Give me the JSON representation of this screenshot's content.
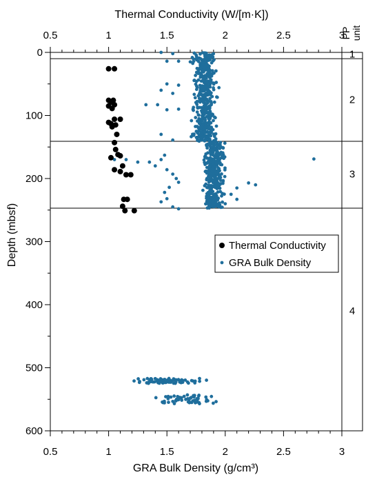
{
  "chart_data": {
    "type": "scatter",
    "title": "",
    "top_axis": {
      "label": "Thermal Conductivity (W/[m·K])",
      "ticks": [
        "0.5",
        "1",
        "1.5",
        "2",
        "2.5",
        "3"
      ],
      "range": [
        0.5,
        3
      ]
    },
    "bottom_axis": {
      "label": "GRA Bulk Density (g/cm³)",
      "ticks": [
        "0.5",
        "1",
        "1.5",
        "2",
        "2.5",
        "3"
      ],
      "range": [
        0.5,
        3
      ]
    },
    "y_axis": {
      "label": "Depth (mbsf)",
      "ticks": [
        "0",
        "100",
        "200",
        "300",
        "400",
        "500",
        "600"
      ],
      "range": [
        0,
        600
      ],
      "inverted": true
    },
    "legend": {
      "placement": "center-right",
      "items": [
        "Thermal Conductivity",
        "GRA Bulk Density"
      ]
    },
    "pp_units": {
      "header_line1": "PP",
      "header_line2": "unit",
      "boundaries_mbsf": [
        10,
        141,
        247
      ],
      "labels": [
        {
          "label": "1",
          "depth": 3
        },
        {
          "label": "2",
          "depth": 75
        },
        {
          "label": "3",
          "depth": 193
        },
        {
          "label": "4",
          "depth": 410
        }
      ]
    },
    "colors": {
      "thermal": "#000000",
      "gra": "#1f6e9c"
    },
    "series": [
      {
        "name": "Thermal Conductivity",
        "axis": "top",
        "points": [
          [
            1.0,
            26
          ],
          [
            1.05,
            26
          ],
          [
            1.0,
            76
          ],
          [
            1.04,
            76
          ],
          [
            1.02,
            79
          ],
          [
            1.05,
            83
          ],
          [
            1.0,
            85
          ],
          [
            1.03,
            89
          ],
          [
            1.0,
            111
          ],
          [
            1.05,
            106
          ],
          [
            1.1,
            106
          ],
          [
            1.02,
            113
          ],
          [
            1.06,
            115
          ],
          [
            1.03,
            118
          ],
          [
            1.07,
            130
          ],
          [
            1.05,
            143
          ],
          [
            1.06,
            154
          ],
          [
            1.08,
            162
          ],
          [
            1.1,
            164
          ],
          [
            1.02,
            167
          ],
          [
            1.12,
            180
          ],
          [
            1.05,
            186
          ],
          [
            1.1,
            189
          ],
          [
            1.15,
            194
          ],
          [
            1.19,
            194
          ],
          [
            1.13,
            233
          ],
          [
            1.16,
            233
          ],
          [
            1.12,
            244
          ],
          [
            1.14,
            251
          ],
          [
            1.22,
            251
          ]
        ]
      },
      {
        "name": "GRA Bulk Density",
        "axis": "bottom",
        "clusters": [
          {
            "depth_range": [
              0,
              10
            ],
            "x_range": [
              1.65,
              2.0
            ],
            "n": 30
          },
          {
            "depth_range": [
              10,
              141
            ],
            "x_range": [
              1.65,
              2.0
            ],
            "n": 420
          },
          {
            "depth_range": [
              141,
              247
            ],
            "x_range": [
              1.75,
              2.05
            ],
            "n": 360
          },
          {
            "depth_range": [
              517,
              525
            ],
            "x_range": [
              1.02,
              2.05
            ],
            "n": 70
          },
          {
            "depth_range": [
              543,
              557
            ],
            "x_range": [
              1.07,
              2.25
            ],
            "n": 55
          }
        ],
        "points": [
          [
            1.45,
            0
          ],
          [
            1.55,
            2
          ],
          [
            1.5,
            14
          ],
          [
            1.6,
            14
          ],
          [
            1.7,
            15
          ],
          [
            1.5,
            50
          ],
          [
            1.6,
            52
          ],
          [
            1.45,
            60
          ],
          [
            1.55,
            65
          ],
          [
            1.32,
            83
          ],
          [
            1.42,
            83
          ],
          [
            1.5,
            91
          ],
          [
            1.6,
            90
          ],
          [
            1.45,
            130
          ],
          [
            1.55,
            139
          ],
          [
            1.48,
            163
          ],
          [
            1.45,
            170
          ],
          [
            1.35,
            174
          ],
          [
            1.25,
            174
          ],
          [
            1.05,
            170
          ],
          [
            1.15,
            170
          ],
          [
            1.4,
            180
          ],
          [
            1.5,
            186
          ],
          [
            1.55,
            193
          ],
          [
            1.58,
            200
          ],
          [
            1.6,
            206
          ],
          [
            1.52,
            214
          ],
          [
            1.48,
            222
          ],
          [
            1.5,
            232
          ],
          [
            1.45,
            237
          ],
          [
            1.55,
            245
          ],
          [
            1.6,
            248
          ],
          [
            2.2,
            207
          ],
          [
            2.26,
            210
          ],
          [
            2.1,
            215
          ],
          [
            2.05,
            225
          ],
          [
            2.1,
            233
          ],
          [
            2.0,
            240
          ],
          [
            2.76,
            169
          ]
        ]
      }
    ]
  }
}
